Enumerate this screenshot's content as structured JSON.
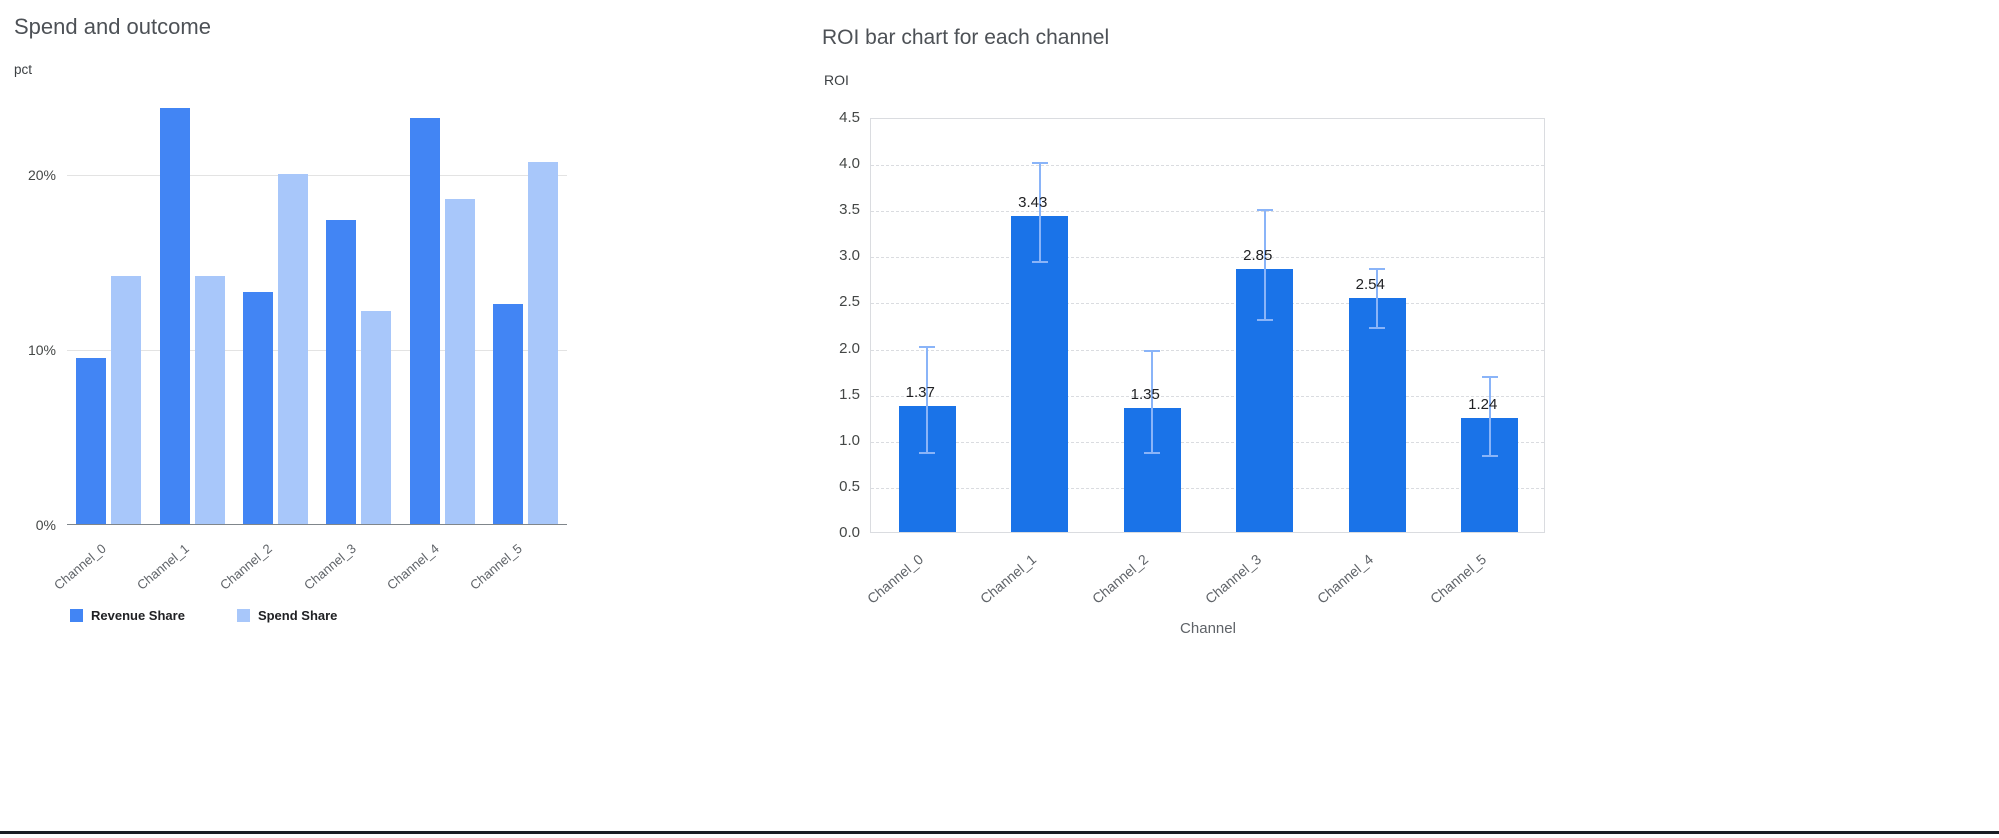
{
  "chart_data": [
    {
      "type": "bar",
      "title": "Spend and outcome",
      "ylabel": "pct",
      "xlabel": "",
      "categories": [
        "Channel_0",
        "Channel_1",
        "Channel_2",
        "Channel_3",
        "Channel_4",
        "Channel_5"
      ],
      "series": [
        {
          "name": "Revenue Share",
          "color": "#4285f4",
          "values": [
            9.5,
            23.8,
            13.3,
            17.4,
            23.2,
            12.6
          ]
        },
        {
          "name": "Spend Share",
          "color": "#a8c7fa",
          "values": [
            14.2,
            14.2,
            20.0,
            12.2,
            18.6,
            20.7
          ]
        }
      ],
      "ylim": [
        0,
        25
      ],
      "yticks": [
        0,
        10,
        20
      ],
      "ytick_labels": [
        "0%",
        "10%",
        "20%"
      ],
      "grid": true,
      "legend_position": "bottom"
    },
    {
      "type": "bar",
      "title": "ROI bar chart for each channel",
      "ylabel": "ROI",
      "xlabel": "Channel",
      "categories": [
        "Channel_0",
        "Channel_1",
        "Channel_2",
        "Channel_3",
        "Channel_4",
        "Channel_5"
      ],
      "values": [
        1.37,
        3.43,
        1.35,
        2.85,
        2.54,
        1.24
      ],
      "value_labels": [
        "1.37",
        "3.43",
        "1.35",
        "2.85",
        "2.54",
        "1.24"
      ],
      "error_low": [
        0.88,
        2.95,
        0.88,
        2.32,
        2.23,
        0.85
      ],
      "error_high": [
        2.03,
        4.02,
        1.98,
        3.51,
        2.87,
        1.7
      ],
      "ylim": [
        0,
        4.5
      ],
      "yticks": [
        0,
        0.5,
        1,
        1.5,
        2,
        2.5,
        3,
        3.5,
        4,
        4.5
      ],
      "ytick_labels": [
        "0.0",
        "0.5",
        "1.0",
        "1.5",
        "2.0",
        "2.5",
        "3.0",
        "3.5",
        "4.0",
        "4.5"
      ],
      "bar_color": "#1a73e8",
      "error_color": "#8ab4f8",
      "grid": "dashed",
      "legend_position": "none"
    }
  ]
}
